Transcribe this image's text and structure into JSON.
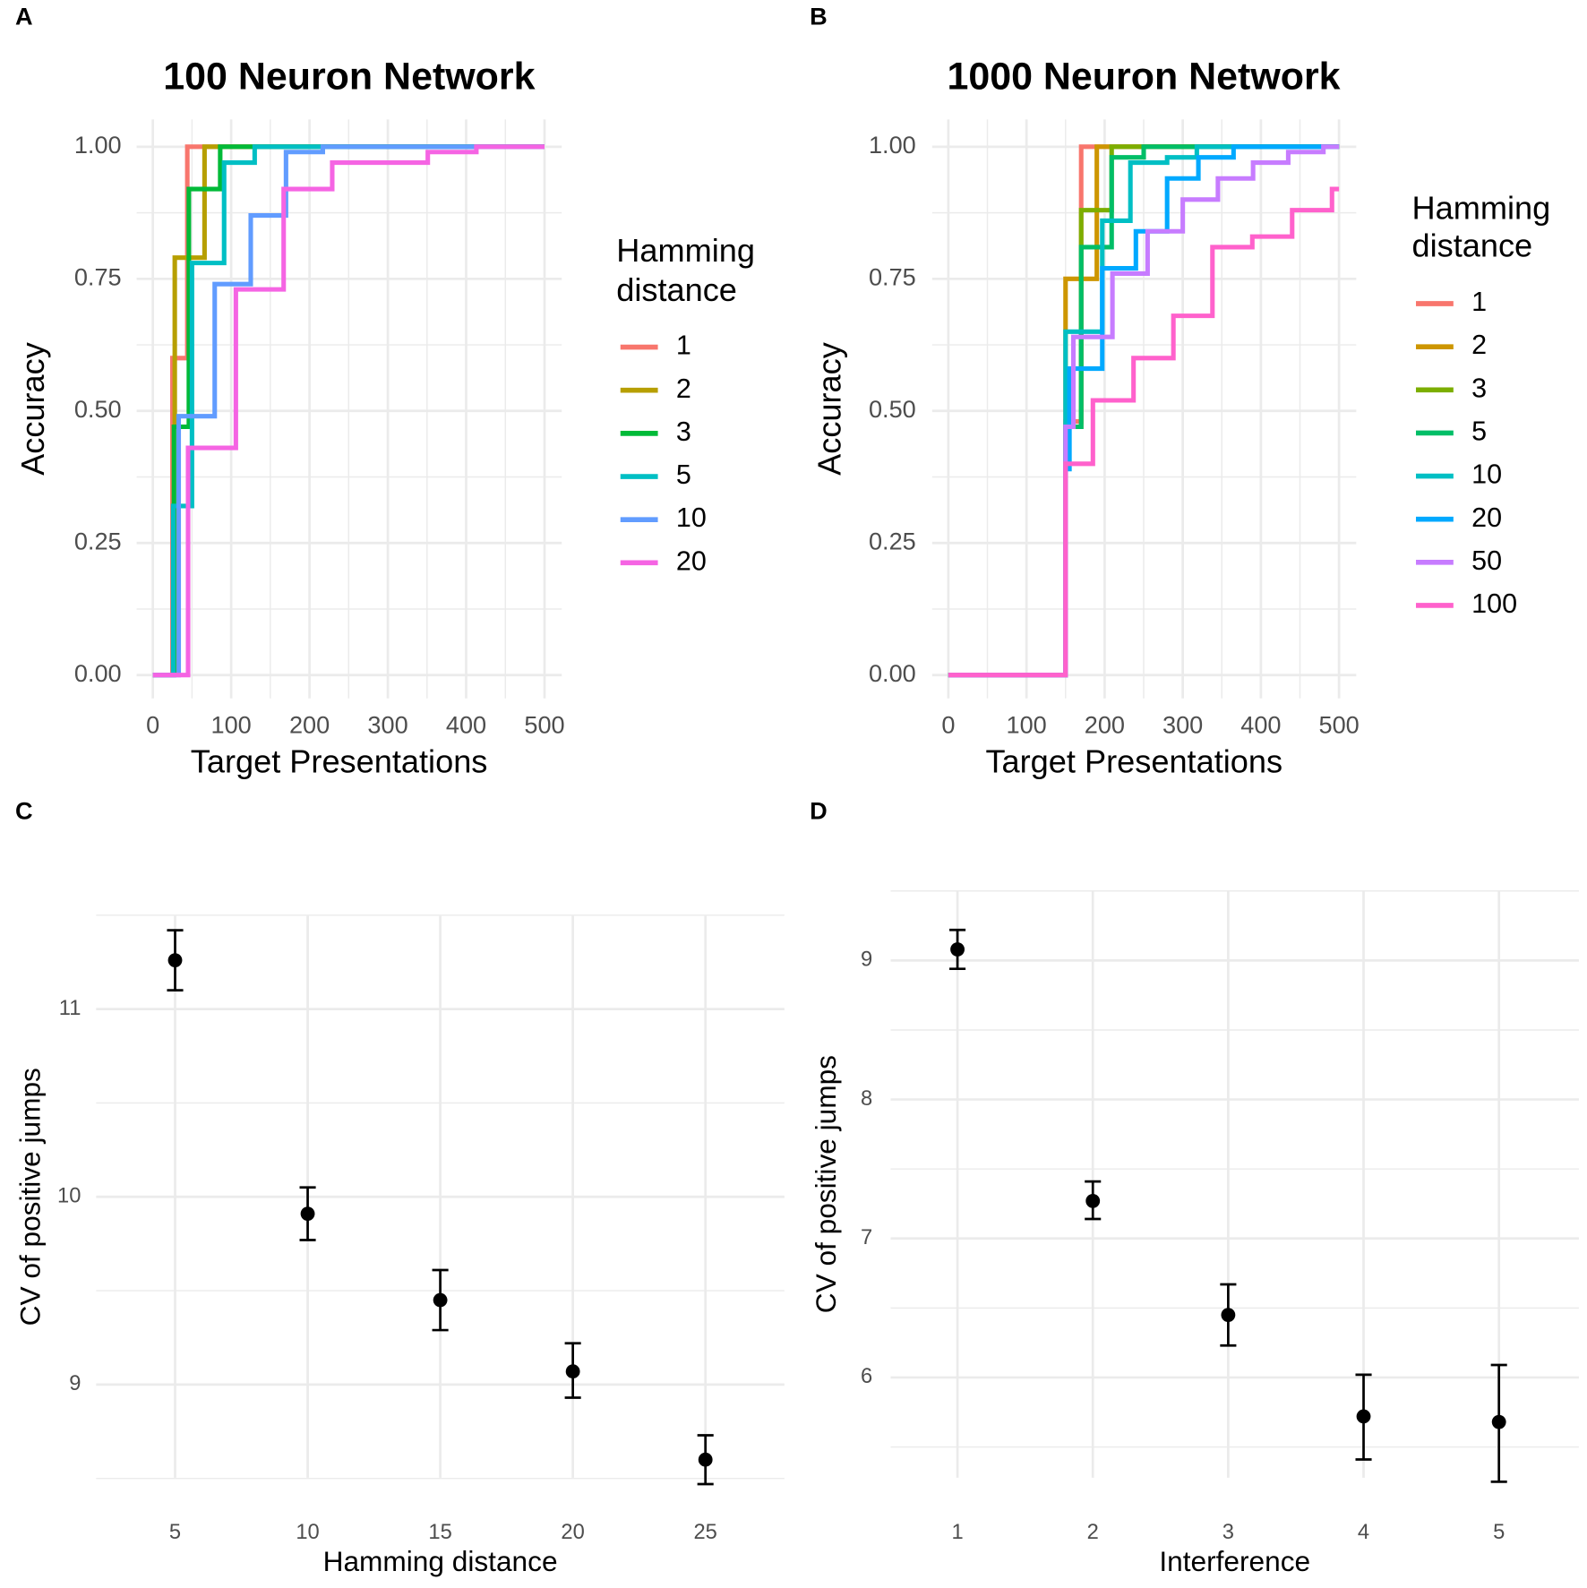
{
  "panel_labels": [
    "A",
    "B",
    "C",
    "D"
  ],
  "chart_data": [
    {
      "type": "line",
      "step": true,
      "title": "100 Neuron Network",
      "xlabel": "Target Presentations",
      "ylabel": "Accuracy",
      "xlim": [
        0,
        500
      ],
      "ylim": [
        0,
        1
      ],
      "xticks": [
        "0",
        "100",
        "200",
        "300",
        "400",
        "500"
      ],
      "yticks": [
        "0.00",
        "0.25",
        "0.50",
        "0.75",
        "1.00"
      ],
      "legend_title": [
        "Hamming",
        "distance"
      ],
      "legend_position": "right",
      "series": [
        {
          "name": "1",
          "color": "#F8766D",
          "steps": [
            [
              0,
              0
            ],
            [
              25,
              0.6
            ],
            [
              44,
              1.0
            ]
          ]
        },
        {
          "name": "2",
          "color": "#B79F00",
          "steps": [
            [
              0,
              0
            ],
            [
              27,
              0.47
            ],
            [
              28,
              0.79
            ],
            [
              66,
              1.0
            ]
          ]
        },
        {
          "name": "3",
          "color": "#00BA38",
          "steps": [
            [
              0,
              0
            ],
            [
              27,
              0.47
            ],
            [
              46,
              0.92
            ],
            [
              86,
              1.0
            ]
          ]
        },
        {
          "name": "5",
          "color": "#00BFC4",
          "steps": [
            [
              0,
              0
            ],
            [
              26,
              0.32
            ],
            [
              50,
              0.78
            ],
            [
              91,
              0.97
            ],
            [
              130,
              1.0
            ]
          ]
        },
        {
          "name": "10",
          "color": "#619CFF",
          "steps": [
            [
              0,
              0
            ],
            [
              33,
              0.49
            ],
            [
              79,
              0.74
            ],
            [
              125,
              0.87
            ],
            [
              170,
              0.99
            ],
            [
              217,
              1.0
            ]
          ]
        },
        {
          "name": "20",
          "color": "#F564E3",
          "steps": [
            [
              0,
              0
            ],
            [
              45,
              0.43
            ],
            [
              106,
              0.73
            ],
            [
              167,
              0.92
            ],
            [
              229,
              0.97
            ],
            [
              351,
              0.99
            ],
            [
              413,
              1.0
            ]
          ]
        }
      ]
    },
    {
      "type": "line",
      "step": true,
      "title": "1000 Neuron Network",
      "xlabel": "Target Presentations",
      "ylabel": "Accuracy",
      "xlim": [
        0,
        500
      ],
      "ylim": [
        0,
        1
      ],
      "xticks": [
        "0",
        "100",
        "200",
        "300",
        "400",
        "500"
      ],
      "yticks": [
        "0.00",
        "0.25",
        "0.50",
        "0.75",
        "1.00"
      ],
      "legend_title": [
        "Hamming",
        "distance"
      ],
      "legend_position": "right",
      "series": [
        {
          "name": "1",
          "color": "#F8766D",
          "steps": [
            [
              0,
              0
            ],
            [
              150,
              0.48
            ],
            [
              170,
              1.0
            ]
          ]
        },
        {
          "name": "2",
          "color": "#CD9600",
          "steps": [
            [
              0,
              0
            ],
            [
              150,
              0.75
            ],
            [
              190,
              1.0
            ]
          ]
        },
        {
          "name": "3",
          "color": "#7CAE00",
          "steps": [
            [
              0,
              0
            ],
            [
              150,
              0.47
            ],
            [
              170,
              0.88
            ],
            [
              209,
              1.0
            ]
          ]
        },
        {
          "name": "5",
          "color": "#00BE67",
          "steps": [
            [
              0,
              0
            ],
            [
              150,
              0.47
            ],
            [
              170,
              0.81
            ],
            [
              209,
              0.98
            ],
            [
              250,
              1.0
            ]
          ]
        },
        {
          "name": "10",
          "color": "#00BFC4",
          "steps": [
            [
              0,
              0
            ],
            [
              150,
              0.65
            ],
            [
              197,
              0.86
            ],
            [
              233,
              0.97
            ],
            [
              280,
              0.98
            ],
            [
              318,
              1.0
            ]
          ]
        },
        {
          "name": "20",
          "color": "#00A9FF",
          "steps": [
            [
              0,
              0
            ],
            [
              150,
              0.39
            ],
            [
              155,
              0.58
            ],
            [
              197,
              0.77
            ],
            [
              240,
              0.84
            ],
            [
              280,
              0.94
            ],
            [
              320,
              0.98
            ],
            [
              365,
              1.0
            ]
          ]
        },
        {
          "name": "50",
          "color": "#C77CFF",
          "steps": [
            [
              0,
              0
            ],
            [
              150,
              0.47
            ],
            [
              160,
              0.64
            ],
            [
              210,
              0.76
            ],
            [
              255,
              0.84
            ],
            [
              300,
              0.9
            ],
            [
              345,
              0.94
            ],
            [
              390,
              0.97
            ],
            [
              435,
              0.99
            ],
            [
              480,
              1.0
            ]
          ]
        },
        {
          "name": "100",
          "color": "#FF61CC",
          "steps": [
            [
              0,
              0
            ],
            [
              150,
              0.4
            ],
            [
              185,
              0.52
            ],
            [
              237,
              0.6
            ],
            [
              288,
              0.68
            ],
            [
              338,
              0.81
            ],
            [
              389,
              0.83
            ],
            [
              440,
              0.88
            ],
            [
              491,
              0.92
            ]
          ]
        }
      ]
    },
    {
      "type": "scatter",
      "error_bars": true,
      "title": "",
      "xlabel": "Hamming distance",
      "ylabel": "CV of positive jumps",
      "xticks": [
        "5",
        "10",
        "15",
        "20",
        "25"
      ],
      "yticks": [
        "9",
        "10",
        "11"
      ],
      "ylim": [
        8.4,
        11.55
      ],
      "points": [
        {
          "x": 5,
          "y": 11.26,
          "ymin": 11.1,
          "ymax": 11.42
        },
        {
          "x": 10,
          "y": 9.91,
          "ymin": 9.77,
          "ymax": 10.05
        },
        {
          "x": 15,
          "y": 9.45,
          "ymin": 9.29,
          "ymax": 9.61
        },
        {
          "x": 20,
          "y": 9.07,
          "ymin": 8.93,
          "ymax": 9.22
        },
        {
          "x": 25,
          "y": 8.6,
          "ymin": 8.47,
          "ymax": 8.73
        }
      ]
    },
    {
      "type": "scatter",
      "error_bars": true,
      "title": "",
      "xlabel": "Interference",
      "ylabel": "CV of positive jumps",
      "xticks": [
        "1",
        "2",
        "3",
        "4",
        "5"
      ],
      "yticks": [
        "6",
        "7",
        "8",
        "9"
      ],
      "ylim": [
        5.1,
        9.3
      ],
      "points": [
        {
          "x": 1,
          "y": 9.08,
          "ymin": 8.94,
          "ymax": 9.22
        },
        {
          "x": 2,
          "y": 7.27,
          "ymin": 7.14,
          "ymax": 7.41
        },
        {
          "x": 3,
          "y": 6.45,
          "ymin": 6.23,
          "ymax": 6.67
        },
        {
          "x": 4,
          "y": 5.72,
          "ymin": 5.41,
          "ymax": 6.02
        },
        {
          "x": 5,
          "y": 5.68,
          "ymin": 5.25,
          "ymax": 6.09
        }
      ]
    }
  ]
}
